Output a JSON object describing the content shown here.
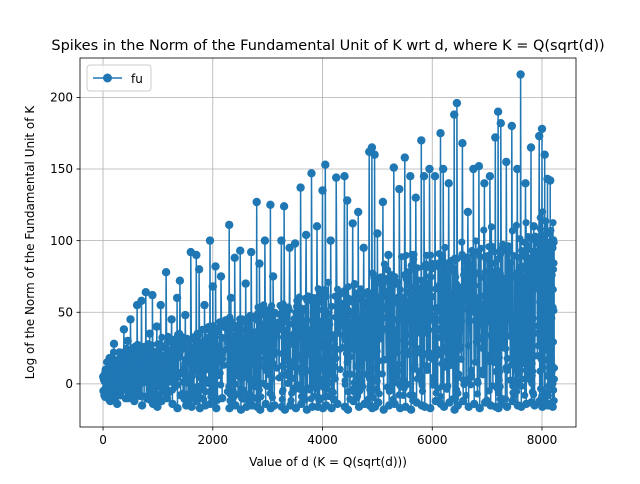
{
  "chart_data": {
    "type": "line",
    "title": "Spikes in the Norm of the Fundamental Unit of K wrt d, where K = Q(sqrt(d))",
    "xlabel": "Value of d (K = Q(sqrt(d)))",
    "ylabel": "Log of the Norm of the Fundamental Unit of K",
    "xlim": [
      -420,
      8620
    ],
    "ylim": [
      -30.1,
      227.5
    ],
    "xticks": [
      0,
      2000,
      4000,
      6000,
      8000
    ],
    "xtick_labels": [
      "0",
      "2000",
      "4000",
      "6000",
      "8000"
    ],
    "yticks": [
      0,
      50,
      100,
      150,
      200
    ],
    "ytick_labels": [
      "0",
      "50",
      "100",
      "150",
      "200"
    ],
    "grid": true,
    "legend": {
      "placement": "top-left"
    },
    "series": [
      {
        "name": "fu",
        "color": "#1f77b4",
        "marker": "circle",
        "x": [
          2,
          50,
          120,
          200,
          250,
          300,
          380,
          450,
          500,
          560,
          620,
          700,
          780,
          850,
          900,
          980,
          1050,
          1150,
          1250,
          1350,
          1400,
          1500,
          1600,
          1700,
          1750,
          1850,
          1950,
          2000,
          2050,
          2150,
          2300,
          2330,
          2400,
          2500,
          2600,
          2700,
          2800,
          2850,
          2950,
          3050,
          3100,
          3250,
          3300,
          3400,
          3500,
          3600,
          3700,
          3800,
          3900,
          4000,
          4050,
          4150,
          4250,
          4400,
          4450,
          4550,
          4650,
          4750,
          4850,
          4900,
          4950,
          5000,
          5100,
          5200,
          5300,
          5400,
          5500,
          5600,
          5700,
          5800,
          5850,
          5950,
          6050,
          6150,
          6200,
          6300,
          6400,
          6450,
          6550,
          6650,
          6750,
          6850,
          6950,
          7050,
          7150,
          7200,
          7250,
          7350,
          7450,
          7550,
          7610,
          7700,
          7800,
          7850,
          7950,
          8000,
          8050,
          8100,
          8150,
          8190
        ],
        "y": [
          5,
          10,
          18,
          28,
          12,
          22,
          38,
          30,
          45,
          25,
          55,
          58,
          64,
          35,
          62,
          40,
          55,
          78,
          45,
          60,
          72,
          48,
          92,
          90,
          80,
          55,
          100,
          68,
          82,
          75,
          111,
          60,
          88,
          93,
          70,
          92,
          127,
          84,
          100,
          125,
          75,
          100,
          124,
          95,
          98,
          137,
          104,
          147,
          110,
          135,
          153,
          100,
          144,
          145,
          128,
          112,
          120,
          95,
          162,
          165,
          160,
          105,
          127,
          90,
          151,
          136,
          158,
          145,
          130,
          170,
          145,
          150,
          145,
          175,
          150,
          140,
          188,
          196,
          168,
          120,
          150,
          152,
          140,
          145,
          172,
          190,
          182,
          155,
          180,
          150,
          216,
          140,
          165,
          110,
          173,
          178,
          160,
          143,
          142,
          95
        ],
        "troughs": [
          -5,
          -2,
          -12,
          0,
          -14,
          -8,
          -4,
          -10,
          -3,
          -12,
          -6,
          -15,
          -9,
          -5,
          -14,
          -16,
          -12,
          -10,
          -14,
          -17,
          -8,
          -15,
          -16,
          -12,
          -17,
          -15,
          -14,
          -13,
          -17,
          -10,
          -17,
          -12,
          -15,
          -18,
          -16,
          -15,
          -16,
          -18,
          -14,
          -17,
          -15,
          -16,
          -18,
          -15,
          -17,
          -14,
          -18,
          -16,
          -16,
          -17,
          -15,
          -17,
          -14,
          -16,
          -18,
          -12,
          -16,
          -14,
          -15,
          -17,
          -16,
          -13,
          -18,
          -15,
          -14,
          -17,
          -16,
          -18,
          -13,
          -15,
          -16,
          -17,
          -12,
          -14,
          -16,
          -13,
          -18,
          -15,
          -12,
          -16,
          -14,
          -17,
          -13,
          -15,
          -16,
          -17,
          -14,
          -16,
          -12,
          -15,
          -16,
          -14,
          -13,
          -15,
          -12,
          -16,
          -14,
          -15,
          -14,
          -16
        ]
      }
    ]
  }
}
